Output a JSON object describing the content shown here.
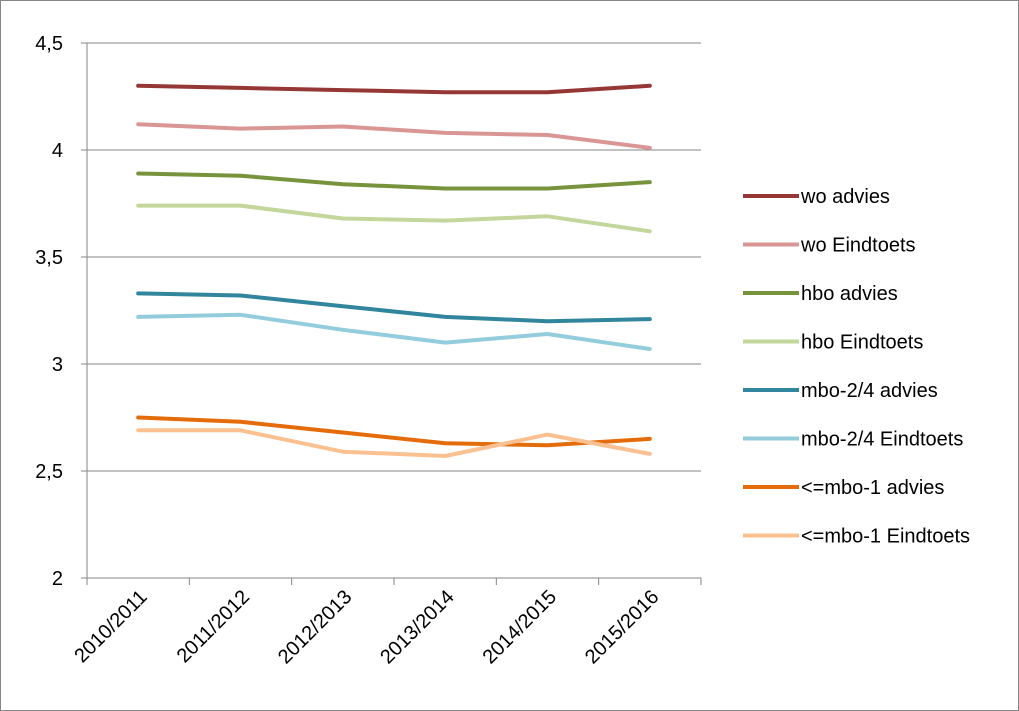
{
  "chart_data": {
    "type": "line",
    "title": "",
    "xlabel": "",
    "ylabel": "",
    "categories": [
      "2010/2011",
      "2011/2012",
      "2012/2013",
      "2013/2014",
      "2014/2015",
      "2015/2016"
    ],
    "ylim": [
      2,
      4.5
    ],
    "yticks": [
      {
        "value": 2,
        "label": "2"
      },
      {
        "value": 2.5,
        "label": "2,5"
      },
      {
        "value": 3,
        "label": "3"
      },
      {
        "value": 3.5,
        "label": "3,5"
      },
      {
        "value": 4,
        "label": "4"
      },
      {
        "value": 4.5,
        "label": "4,5"
      }
    ],
    "grid": true,
    "legend_position": "right",
    "series": [
      {
        "name": "wo advies",
        "color": "#953735",
        "values": [
          4.3,
          4.29,
          4.28,
          4.27,
          4.27,
          4.3
        ]
      },
      {
        "name": "wo Eindtoets",
        "color": "#d99694",
        "values": [
          4.12,
          4.1,
          4.11,
          4.08,
          4.07,
          4.01
        ]
      },
      {
        "name": "hbo advies",
        "color": "#77933c",
        "values": [
          3.89,
          3.88,
          3.84,
          3.82,
          3.82,
          3.85
        ]
      },
      {
        "name": "hbo Eindtoets",
        "color": "#c3d69b",
        "values": [
          3.74,
          3.74,
          3.68,
          3.67,
          3.69,
          3.62
        ]
      },
      {
        "name": "mbo-2/4 advies",
        "color": "#31859c",
        "values": [
          3.33,
          3.32,
          3.27,
          3.22,
          3.2,
          3.21
        ]
      },
      {
        "name": "mbo-2/4 Eindtoets",
        "color": "#93cddd",
        "values": [
          3.22,
          3.23,
          3.16,
          3.1,
          3.14,
          3.07
        ]
      },
      {
        "name": "<=mbo-1 advies",
        "color": "#e46c0a",
        "values": [
          2.75,
          2.73,
          2.68,
          2.63,
          2.62,
          2.65
        ]
      },
      {
        "name": "<=mbo-1 Eindtoets",
        "color": "#fac090",
        "values": [
          2.69,
          2.69,
          2.59,
          2.57,
          2.67,
          2.58
        ]
      }
    ]
  }
}
